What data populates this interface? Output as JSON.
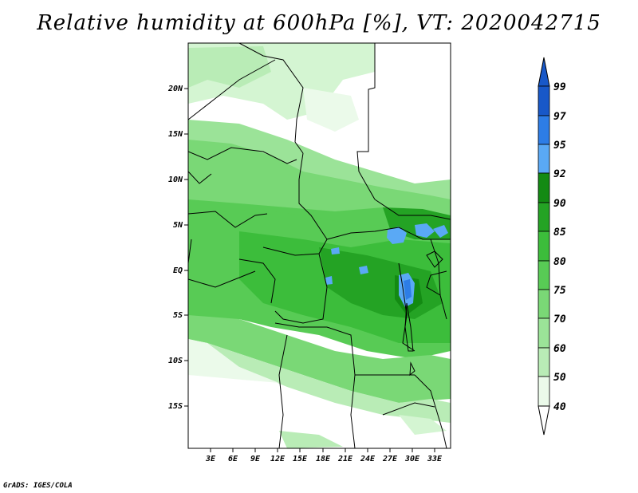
{
  "title": "Relative humidity at 600hPa [%], VT: 2020042715",
  "credit": "GrADS: IGES/COLA",
  "map": {
    "lat_labels": [
      "20N",
      "15N",
      "10N",
      "5N",
      "EQ",
      "5S",
      "10S",
      "15S"
    ],
    "lon_labels": [
      "3E",
      "6E",
      "9E",
      "12E",
      "15E",
      "18E",
      "21E",
      "24E",
      "27E",
      "30E",
      "33E"
    ]
  },
  "colorbar": {
    "levels": [
      "40",
      "50",
      "60",
      "70",
      "75",
      "80",
      "85",
      "90",
      "92",
      "95",
      "97",
      "99"
    ],
    "colors": [
      "#ffffff",
      "#ebfaea",
      "#d4f5d2",
      "#b9ecb6",
      "#9be398",
      "#7ad876",
      "#58cb55",
      "#3cbd3b",
      "#24a324",
      "#138a13",
      "#5aa9f5",
      "#2d7de6",
      "#1858c8"
    ]
  }
}
